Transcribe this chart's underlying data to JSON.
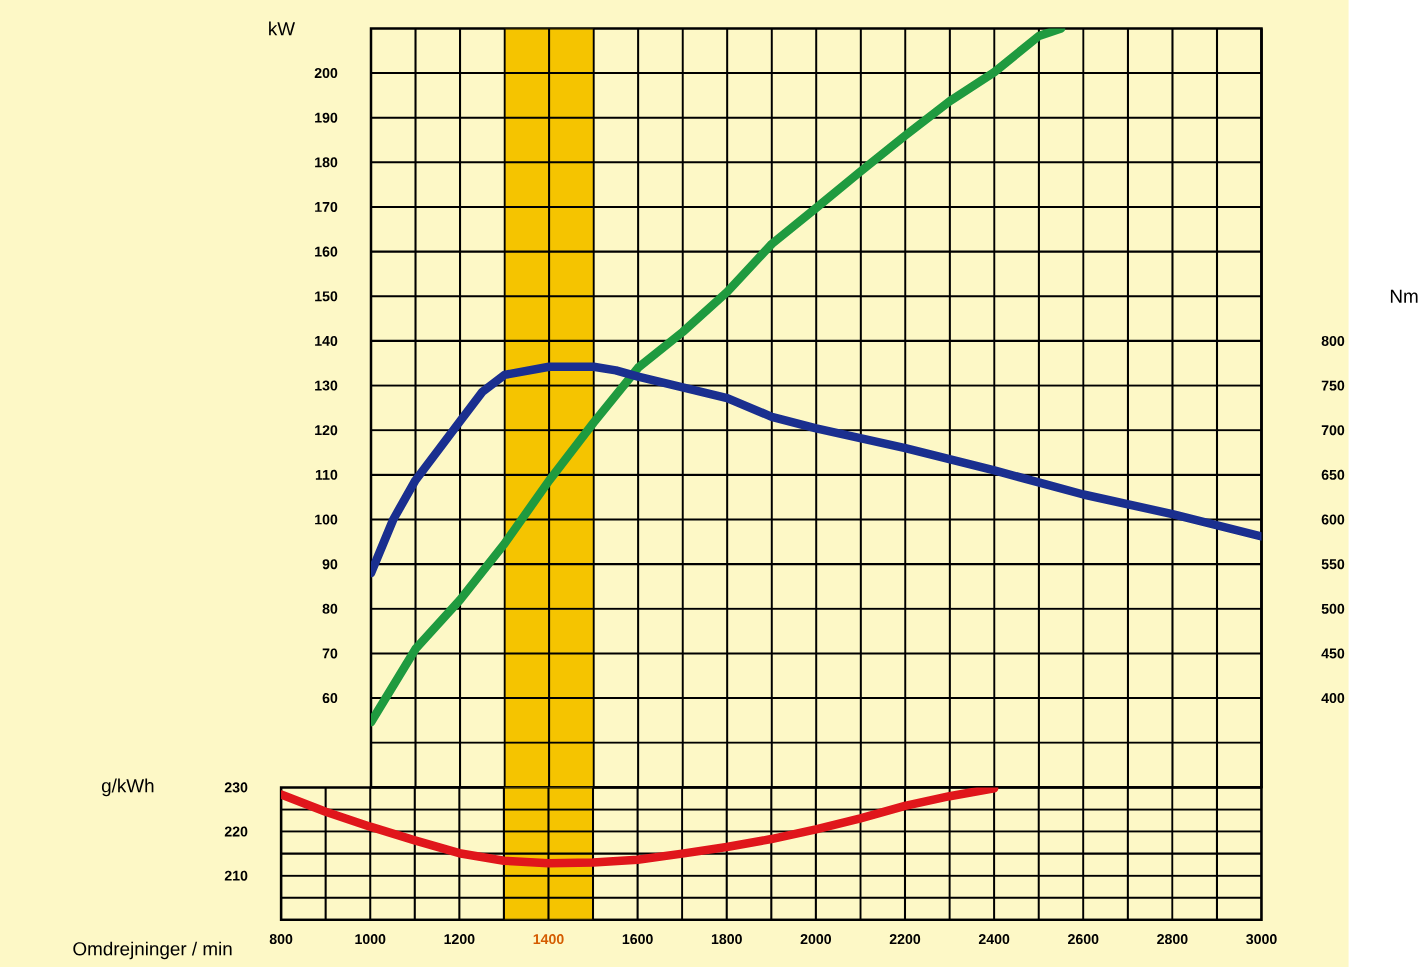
{
  "chart_data": [
    {
      "type": "line",
      "ylabel": "kW",
      "y2label": "Nm",
      "xlim": [
        1000,
        3000
      ],
      "xticks": [
        1000,
        1100,
        1200,
        1300,
        1400,
        1500,
        1600,
        1700,
        1800,
        1900,
        2000,
        2100,
        2200,
        2300,
        2400,
        2500,
        2600,
        2700,
        2800,
        2900,
        3000
      ],
      "ylim": [
        40,
        210
      ],
      "yticks": [
        {
          "value": 40,
          "label": null
        },
        {
          "value": 50,
          "label": null
        },
        60,
        70,
        80,
        90,
        100,
        110,
        120,
        130,
        140,
        150,
        160,
        170,
        180,
        190,
        200,
        {
          "value": 210,
          "label": null
        }
      ],
      "y2lim": [
        300,
        1150
      ],
      "y2ticks": [
        400,
        450,
        500,
        550,
        600,
        650,
        700,
        750,
        800
      ],
      "tick_labels": "y",
      "grid": true,
      "bands": [
        {
          "axis": "x",
          "from": 1300,
          "to": 1500,
          "color": "#f5c400"
        }
      ],
      "series": [
        {
          "color": "#1f9a3f",
          "x": [
            1000,
            1100,
            1200,
            1300,
            1400,
            1500,
            1600,
            1700,
            1800,
            1900,
            2000,
            2100,
            2200,
            2300,
            2400,
            2500,
            2550
          ],
          "values": [
            54.6,
            71,
            82,
            94.6,
            108.7,
            121.7,
            134,
            142,
            151,
            161.7,
            169.8,
            178,
            186,
            193.7,
            200.2,
            208.3,
            210
          ]
        },
        {
          "color": "#1a2f8f",
          "axis": "y2",
          "x": [
            1000,
            1050,
            1100,
            1200,
            1250,
            1300,
            1400,
            1500,
            1550,
            1600,
            1700,
            1800,
            1900,
            2000,
            2200,
            2400,
            2600,
            2800,
            3000
          ],
          "values": [
            540,
            600,
            644,
            710,
            743,
            762,
            771,
            771,
            767,
            760,
            748,
            736,
            715,
            702,
            680,
            655,
            628,
            606,
            581
          ]
        }
      ]
    },
    {
      "type": "line",
      "ylabel": "g/kWh",
      "xlabel": "Omdrejninger / min",
      "xlim": [
        800,
        3000
      ],
      "xticks": [
        800,
        {
          "value": 900,
          "label": null
        },
        1000,
        {
          "value": 1100,
          "label": null
        },
        1200,
        {
          "value": 1300,
          "label": null
        },
        1400,
        {
          "value": 1500,
          "label": null
        },
        1600,
        {
          "value": 1700,
          "label": null
        },
        1800,
        {
          "value": 1900,
          "label": null
        },
        2000,
        {
          "value": 2100,
          "label": null
        },
        2200,
        {
          "value": 2300,
          "label": null
        },
        2400,
        {
          "value": 2500,
          "label": null
        },
        2600,
        {
          "value": 2700,
          "label": null
        },
        2800,
        {
          "value": 2900,
          "label": null
        },
        3000
      ],
      "ylim": [
        200,
        230
      ],
      "yticks": [
        {
          "value": 200,
          "label": null
        },
        {
          "value": 205,
          "label": null
        },
        210,
        {
          "value": 215,
          "label": null
        },
        220,
        {
          "value": 225,
          "label": null
        },
        230
      ],
      "grid": true,
      "bands": [
        {
          "axis": "x",
          "from": 1300,
          "to": 1500,
          "color": "#f5c400"
        }
      ],
      "series": [
        {
          "color": "#e0161b",
          "x": [
            800,
            900,
            1000,
            1100,
            1200,
            1300,
            1400,
            1500,
            1600,
            1700,
            1800,
            1900,
            2000,
            2100,
            2200,
            2300,
            2400
          ],
          "values": [
            228.4,
            224.5,
            221.1,
            218,
            215.1,
            213.4,
            212.8,
            213,
            213.6,
            215,
            216.5,
            218.3,
            220.5,
            223,
            225.8,
            228,
            229.8
          ]
        }
      ]
    }
  ]
}
